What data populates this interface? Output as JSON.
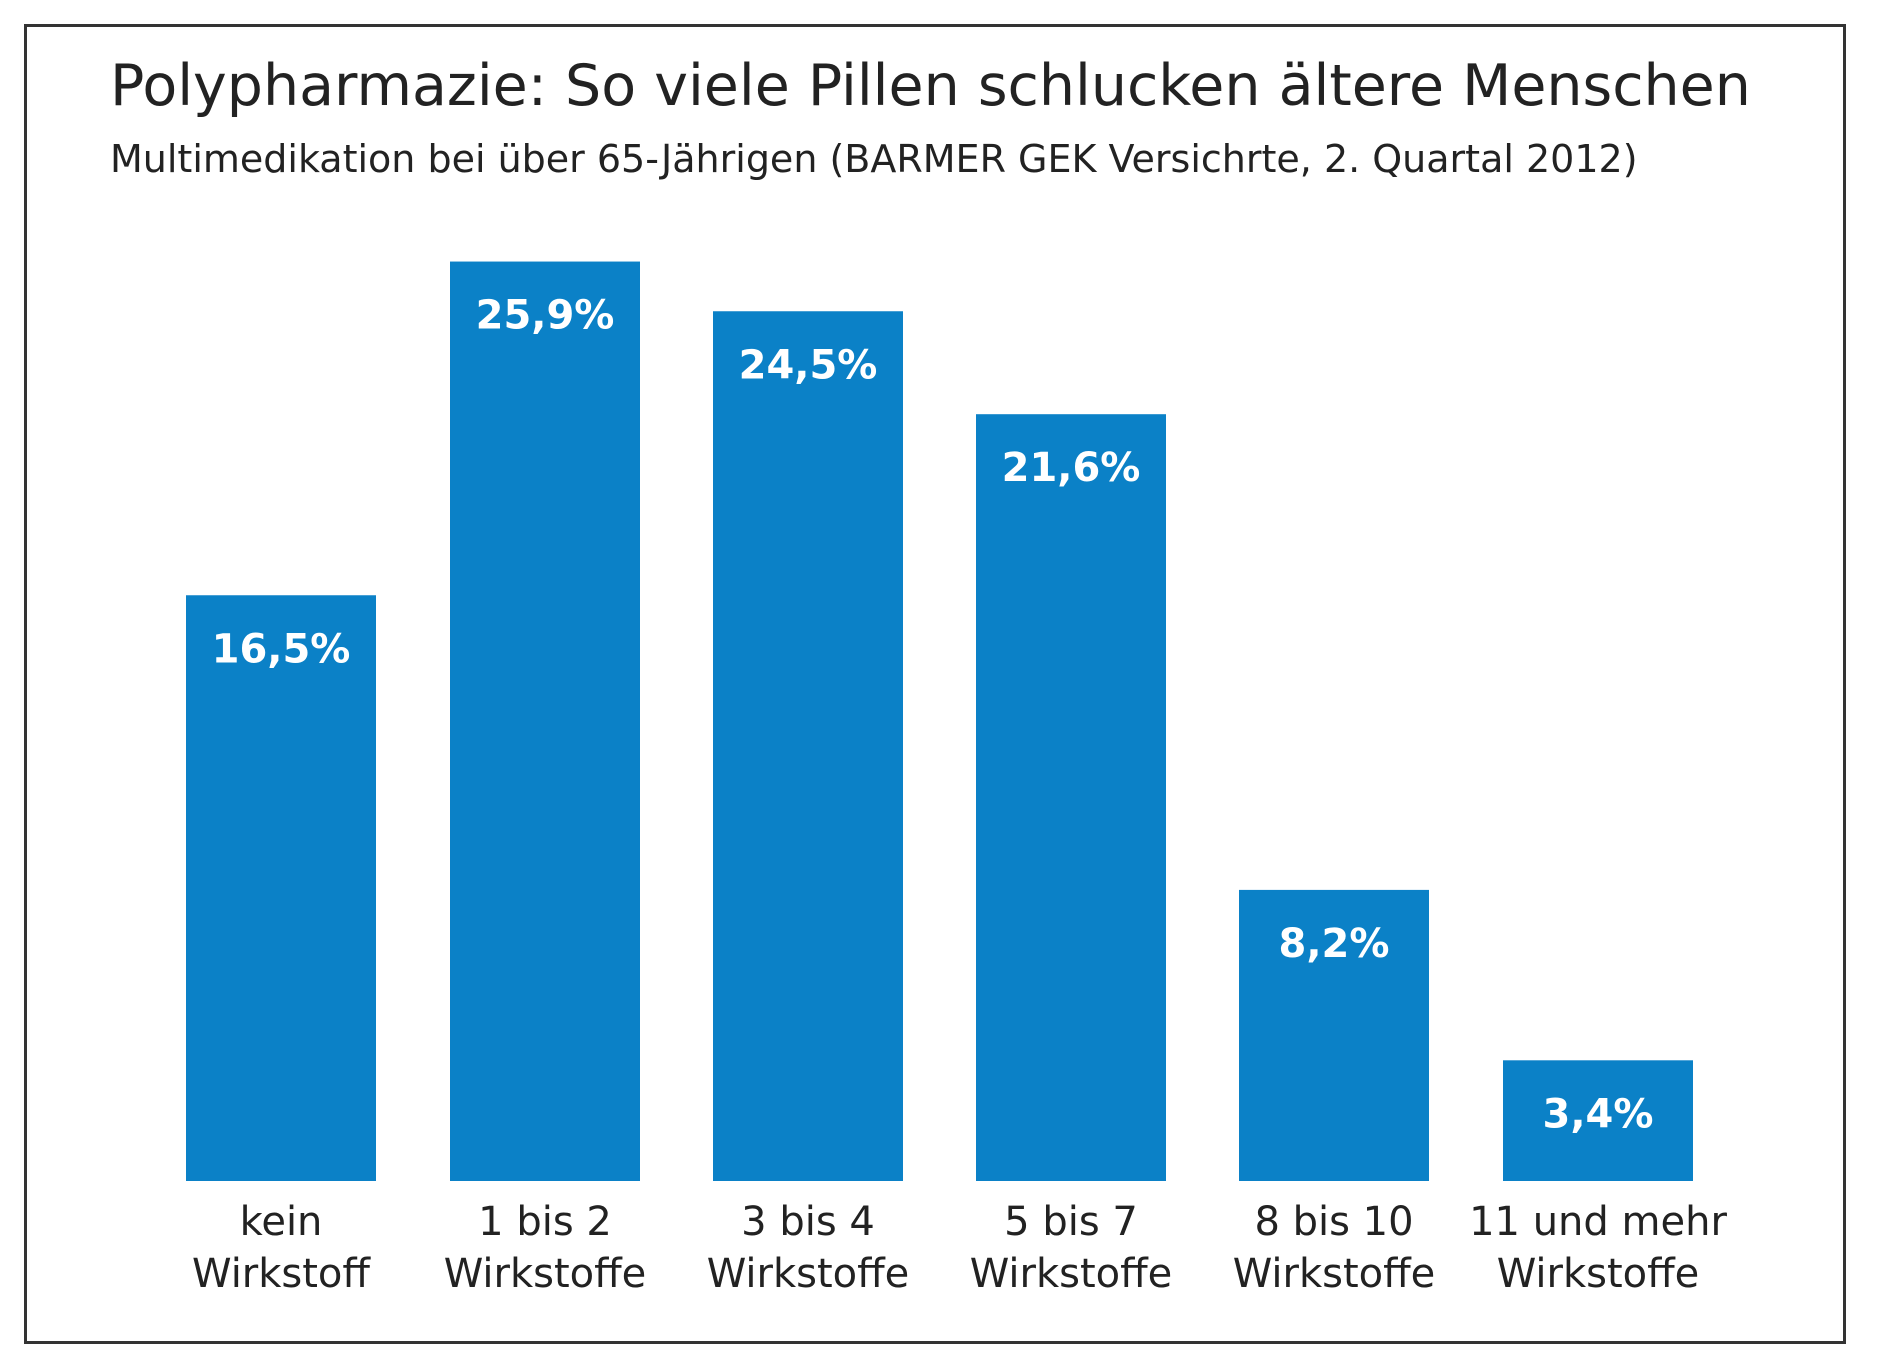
{
  "chart_data": {
    "type": "bar",
    "title": "Polypharmazie: So viele Pillen schlucken ältere Menschen",
    "subtitle": "Multimedikation bei über 65-Jährigen (BARMER GEK Versichrte, 2. Quartal 2012)",
    "categories": [
      [
        "kein",
        "Wirkstoff"
      ],
      [
        "1 bis 2",
        "Wirkstoffe"
      ],
      [
        "3 bis 4",
        "Wirkstoffe"
      ],
      [
        "5 bis 7",
        "Wirkstoffe"
      ],
      [
        "8 bis 10",
        "Wirkstoffe"
      ],
      [
        "11 und mehr",
        "Wirkstoffe"
      ]
    ],
    "values": [
      16.5,
      25.9,
      24.5,
      21.6,
      8.2,
      3.4
    ],
    "value_labels": [
      "16,5%",
      "25,9%",
      "24,5%",
      "21,6%",
      "8,2%",
      "3,4%"
    ],
    "unit": "%",
    "bar_color": "#0b81c7",
    "label_color": "#ffffff",
    "grid": false,
    "legend": "none"
  }
}
